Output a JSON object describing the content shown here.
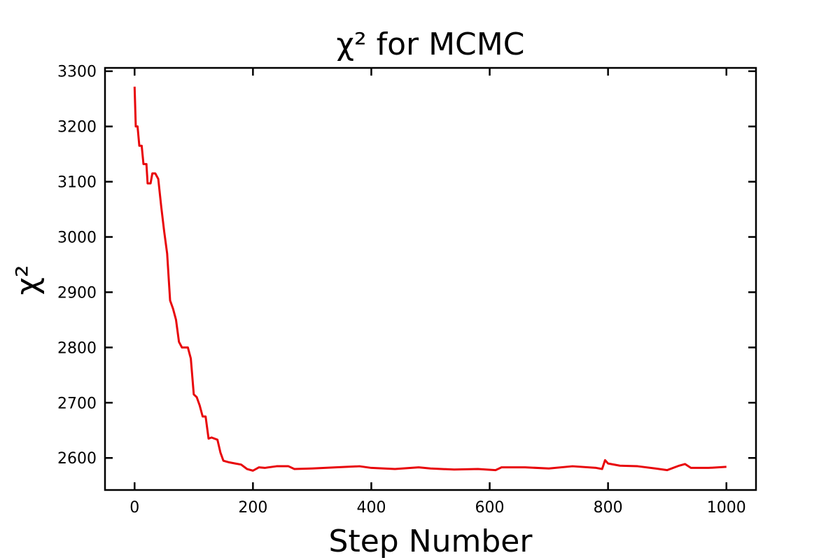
{
  "chart_data": {
    "type": "line",
    "title": "χ² for MCMC",
    "xlabel": "Step Number",
    "ylabel": "χ²",
    "x": [
      0,
      2,
      5,
      8,
      12,
      15,
      20,
      22,
      27,
      30,
      35,
      40,
      45,
      50,
      55,
      60,
      65,
      70,
      75,
      80,
      90,
      95,
      100,
      105,
      110,
      115,
      120,
      125,
      130,
      140,
      145,
      150,
      160,
      170,
      180,
      190,
      200,
      210,
      220,
      240,
      260,
      270,
      300,
      340,
      380,
      400,
      440,
      480,
      500,
      540,
      580,
      610,
      620,
      660,
      700,
      740,
      780,
      790,
      795,
      800,
      820,
      850,
      880,
      900,
      920,
      930,
      940,
      970,
      1000
    ],
    "series": [
      {
        "name": "chi2",
        "color": "#e8060a",
        "values": [
          3272,
          3200,
          3200,
          3165,
          3165,
          3132,
          3132,
          3097,
          3097,
          3115,
          3115,
          3105,
          3055,
          3010,
          2970,
          2885,
          2870,
          2850,
          2810,
          2800,
          2800,
          2780,
          2715,
          2710,
          2695,
          2675,
          2675,
          2635,
          2637,
          2633,
          2610,
          2595,
          2592,
          2590,
          2588,
          2580,
          2577,
          2583,
          2582,
          2585,
          2585,
          2580,
          2581,
          2583,
          2585,
          2582,
          2580,
          2583,
          2581,
          2579,
          2580,
          2578,
          2583,
          2583,
          2581,
          2585,
          2582,
          2580,
          2596,
          2590,
          2586,
          2585,
          2581,
          2578,
          2586,
          2589,
          2582,
          2582,
          2584
        ]
      }
    ],
    "xlim": [
      -50,
      1050
    ],
    "ylim": [
      2542,
      3306
    ],
    "xticks": [
      0,
      200,
      400,
      600,
      800,
      1000
    ],
    "yticks": [
      2600,
      2700,
      2800,
      2900,
      3000,
      3100,
      3200,
      3300
    ]
  }
}
